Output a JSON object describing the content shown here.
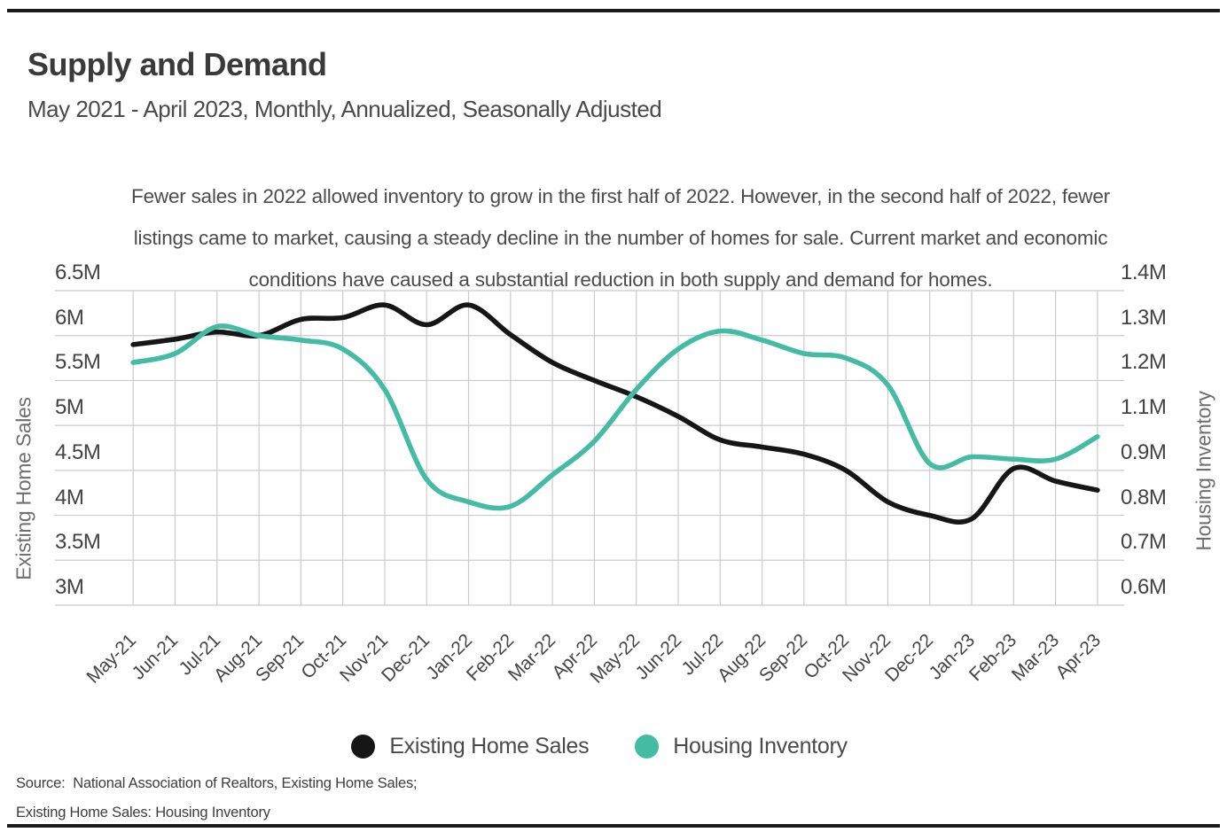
{
  "page": {
    "title": "Supply and Demand",
    "subtitle": "May 2021 - April 2023, Monthly, Annualized, Seasonally Adjusted",
    "annotation_lines": [
      "Fewer sales in 2022 allowed inventory to grow in the first half of 2022. However, in the second half of 2022, fewer",
      "listings came to market, causing a steady decline in the number of homes for sale. Current market and economic",
      "conditions have caused a substantial reduction in both supply and demand for homes."
    ],
    "source_line1": "Source:  National Association of Realtors, Existing Home Sales;",
    "source_line2": "Existing Home Sales: Housing Inventory"
  },
  "legend": [
    {
      "label": "Existing Home Sales",
      "color": "#161616"
    },
    {
      "label": "Housing Inventory",
      "color": "#44bca4"
    }
  ],
  "colors": {
    "sales_line": "#161616",
    "inventory_line": "#44bca4",
    "gridline": "#cbcbcb"
  },
  "chart_data": {
    "type": "line",
    "title": "Supply and Demand",
    "x": [
      "May-21",
      "Jun-21",
      "Jul-21",
      "Aug-21",
      "Sep-21",
      "Oct-21",
      "Nov-21",
      "Dec-21",
      "Jan-22",
      "Feb-22",
      "Mar-22",
      "Apr-22",
      "May-22",
      "Jun-22",
      "Jul-22",
      "Aug-22",
      "Sep-22",
      "Oct-22",
      "Nov-22",
      "Dec-22",
      "Jan-23",
      "Feb-23",
      "Mar-23",
      "Apr-23"
    ],
    "series": [
      {
        "name": "Existing Home Sales",
        "axis": "left",
        "units": "millions, SAAR",
        "values": [
          5.9,
          5.96,
          6.04,
          6.0,
          6.18,
          6.2,
          6.34,
          6.12,
          6.34,
          6.01,
          5.7,
          5.5,
          5.32,
          5.1,
          4.84,
          4.76,
          4.68,
          4.5,
          4.15,
          4.0,
          3.96,
          4.52,
          4.38,
          4.28
        ]
      },
      {
        "name": "Housing Inventory",
        "axis": "right",
        "units": "millions",
        "values": [
          1.24,
          1.26,
          1.32,
          1.3,
          1.29,
          1.27,
          1.18,
          0.88,
          0.83,
          0.82,
          0.89,
          1.03,
          1.18,
          1.27,
          1.31,
          1.29,
          1.26,
          1.25,
          1.19,
          0.93,
          0.96,
          0.95,
          0.95,
          1.05
        ]
      }
    ],
    "left_axis": {
      "label": "Existing Home Sales",
      "tick_labels": [
        "6.5M",
        "6M",
        "5.5M",
        "5M",
        "4.5M",
        "4M",
        "3.5M",
        "3M"
      ],
      "range": [
        3.0,
        6.5
      ]
    },
    "right_axis": {
      "label": "Housing Inventory",
      "tick_labels": [
        "1.4M",
        "1.3M",
        "1.2M",
        "1.1M",
        "0.9M",
        "0.8M",
        "0.7M",
        "0.6M"
      ]
    },
    "grid": true,
    "legend_position": "bottom"
  }
}
